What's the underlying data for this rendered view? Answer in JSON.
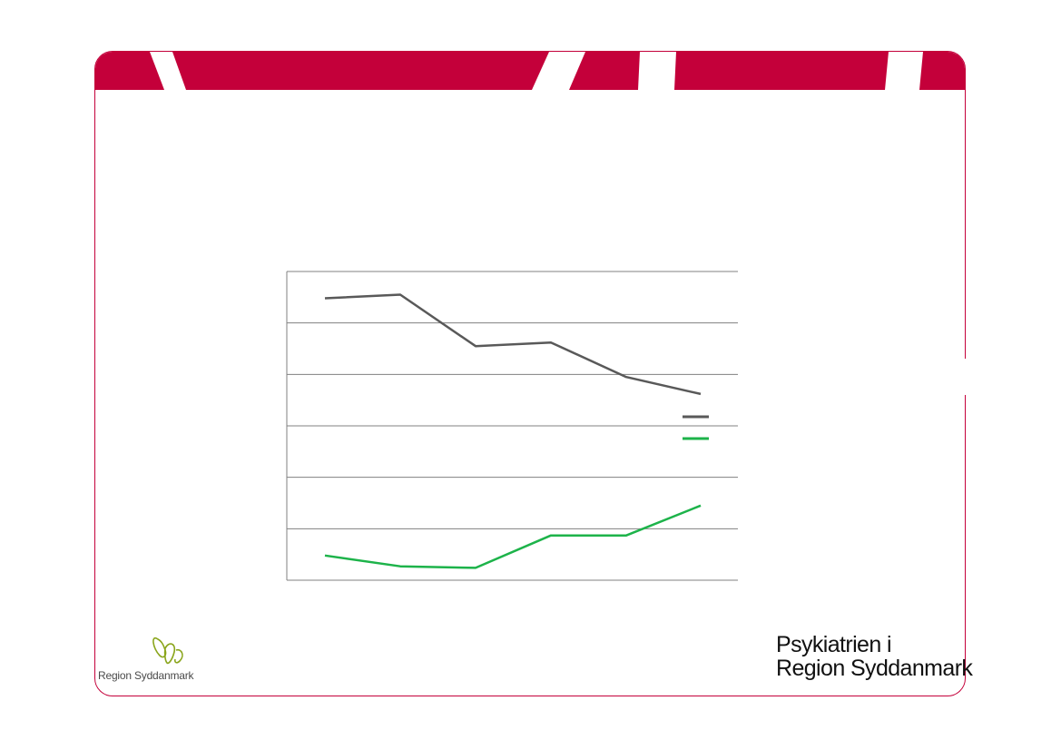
{
  "colors": {
    "brand": "#c4003a",
    "gridline": "#808080",
    "series_dark": "#595959",
    "series_green": "#1db34a",
    "logo_green": "#8aa51b"
  },
  "chart_data": {
    "type": "line",
    "title": "",
    "xlabel": "",
    "ylabel": "",
    "x": [
      1,
      2,
      3,
      4,
      5,
      6
    ],
    "ylim": [
      0,
      6
    ],
    "grid": true,
    "legend": "right",
    "series": [
      {
        "values": [
          5.48,
          5.55,
          4.55,
          4.62,
          3.95,
          3.62
        ]
      },
      {
        "values": [
          0.48,
          0.27,
          0.24,
          0.87,
          0.87,
          1.45
        ]
      }
    ]
  },
  "footer": {
    "left_logo_text": "Region Syddanmark",
    "left_logo_icon": "region-syddanmark-butterfly-icon",
    "right_logo_line1": "Psykiatrien i",
    "right_logo_line2": "Region Syddanmark"
  }
}
